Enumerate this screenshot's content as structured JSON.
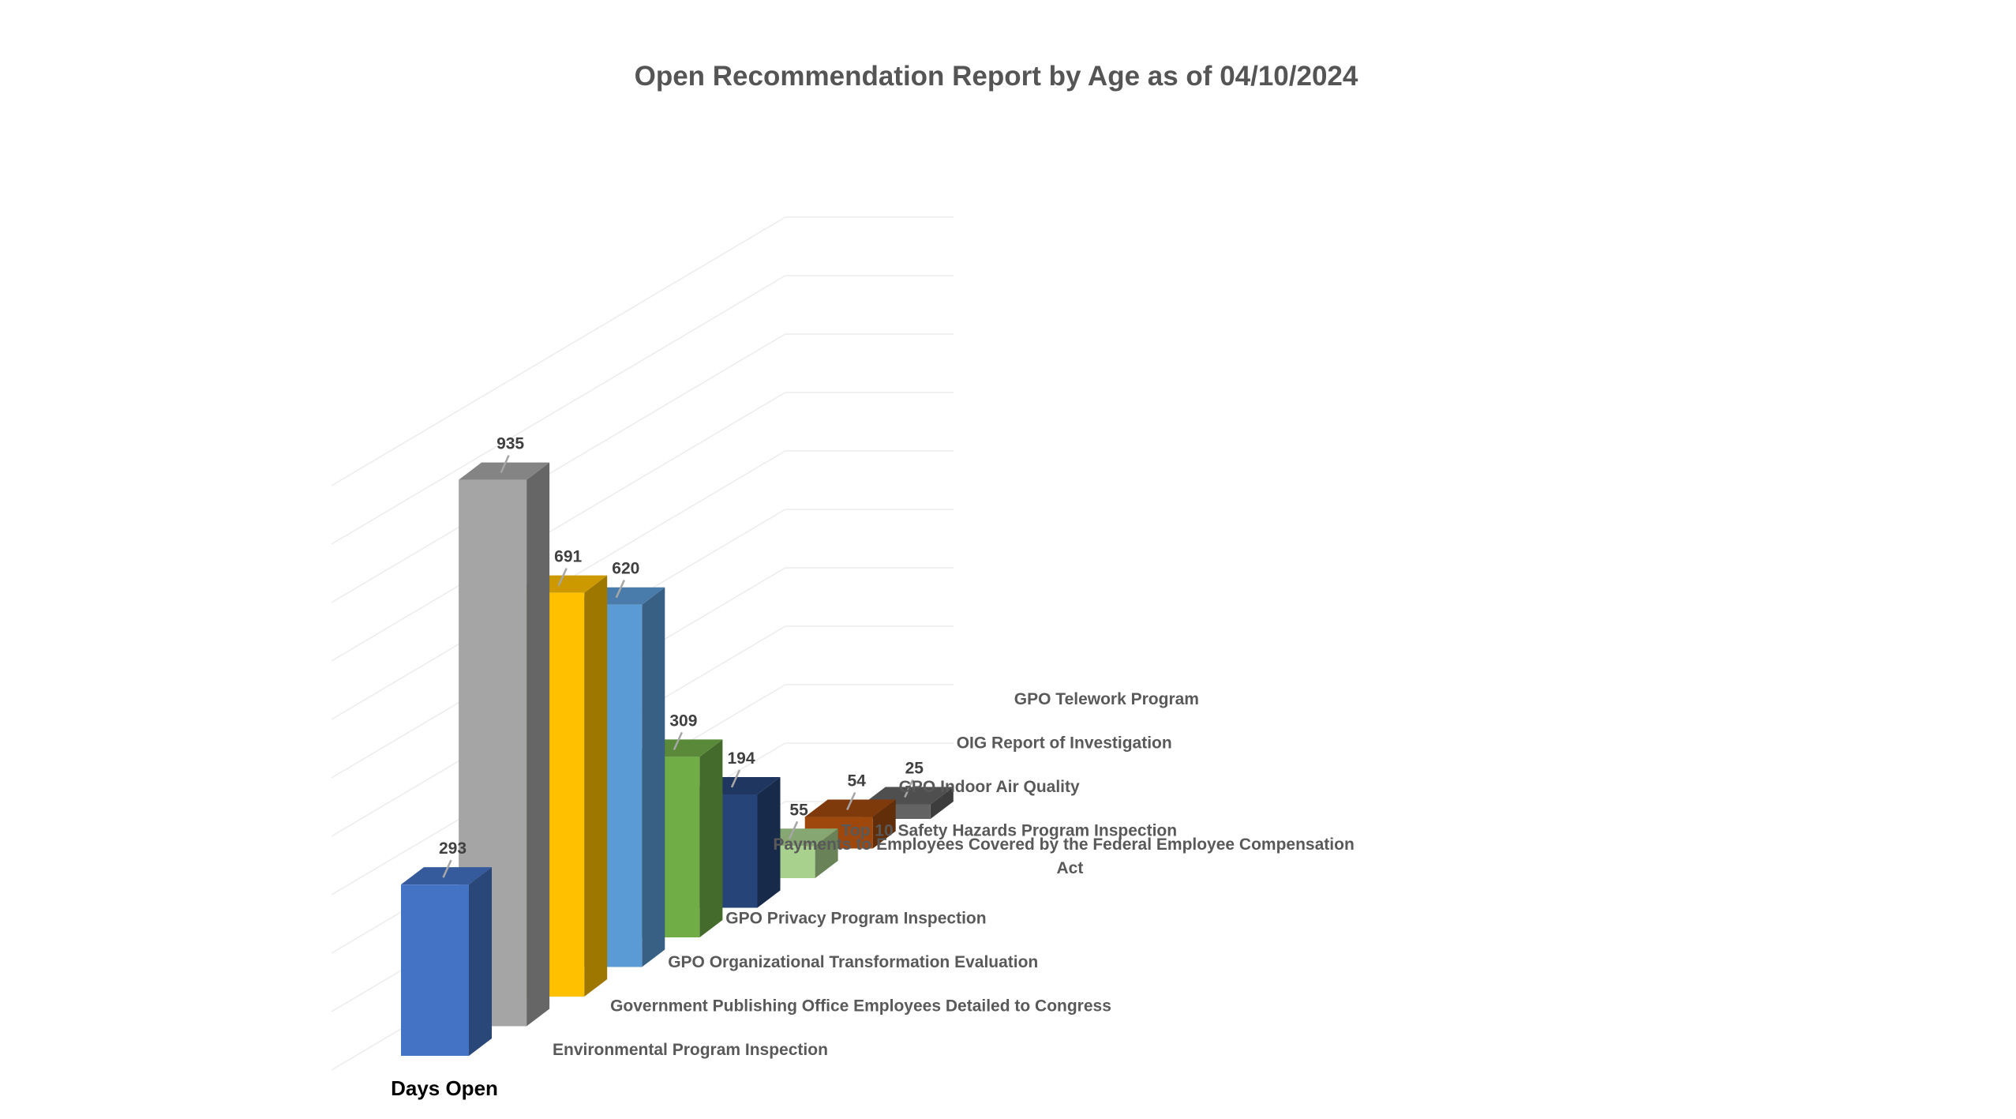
{
  "chart_data": {
    "type": "bar",
    "title": "Open Recommendation Report by Age as of 04/10/2024",
    "series_axis_label": "Days Open",
    "categories": [
      "Environmental Program Inspection",
      "Government Publishing Office Employees Detailed to Congress",
      "GPO Organizational Transformation Evaluation",
      "GPO Privacy Program Inspection",
      "Payments to Employees Covered by the Federal Employee Compensation Act",
      "Top 10 Safety Hazards Program Inspection",
      "GPO Indoor Air Quality",
      "OIG Report of Investigation",
      "GPO Telework Program"
    ],
    "series": [
      {
        "values": [
          293,
          935,
          691,
          620,
          309,
          194,
          55,
          54,
          25
        ]
      }
    ],
    "value_labels": [
      "293",
      "935",
      "691",
      "620",
      "309",
      "194",
      "55",
      "54",
      "25"
    ],
    "colors": [
      "#4472C4",
      "#A5A5A5",
      "#FFC000",
      "#5B9BD5",
      "#70AD47",
      "#264478",
      "#A9D18E",
      "#9E480E",
      "#636363"
    ],
    "ylim": [
      0,
      1000
    ],
    "grid": true,
    "legend": "none",
    "projection": "3d"
  }
}
